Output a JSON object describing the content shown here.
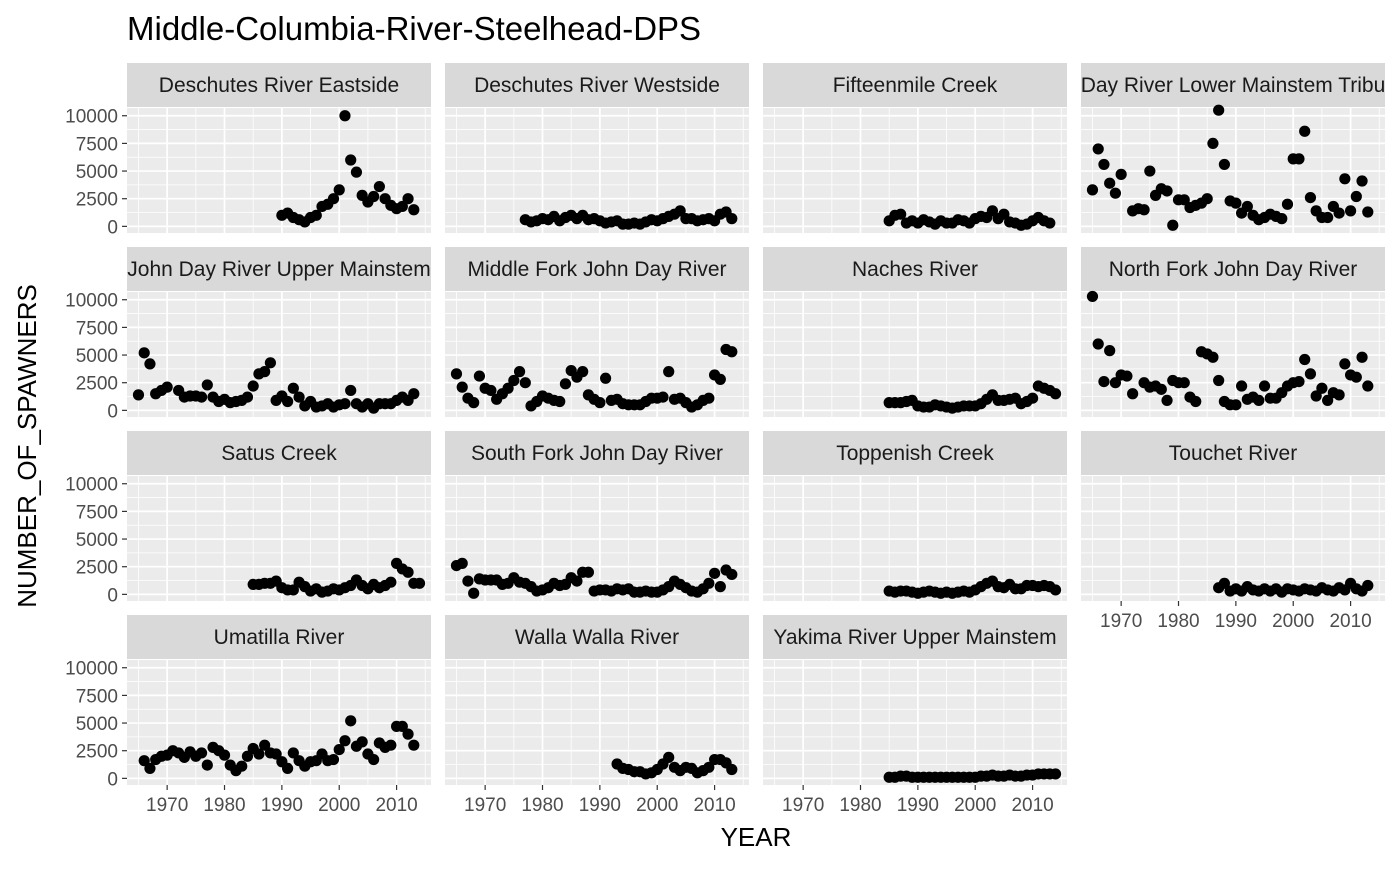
{
  "chart_data": {
    "type": "scatter",
    "title": "Middle-Columbia-River-Steelhead-DPS",
    "xlabel": "YEAR",
    "ylabel": "NUMBER_OF_SPAWNERS",
    "xlim": [
      1963,
      2016
    ],
    "ylim": [
      -600,
      10700
    ],
    "x_ticks": [
      1970,
      1980,
      1990,
      2000,
      2010
    ],
    "y_ticks": [
      0,
      2500,
      5000,
      7500,
      10000
    ],
    "y_tick_labels": [
      "0",
      "2500",
      "5000",
      "7500",
      "10000"
    ],
    "grid": true,
    "panel_background": "#ebebeb",
    "strip_background": "#d9d9d9",
    "point_color": "#000000",
    "facets": [
      {
        "name": "Deschutes River Eastside",
        "x": [
          1990,
          1991,
          1992,
          1993,
          1994,
          1995,
          1996,
          1997,
          1998,
          1999,
          2000,
          2001,
          2002,
          2003,
          2004,
          2005,
          2006,
          2007,
          2008,
          2009,
          2010,
          2011,
          2012,
          2013
        ],
        "y": [
          1000,
          1200,
          800,
          600,
          400,
          800,
          1000,
          1800,
          2000,
          2500,
          3300,
          10000,
          6000,
          4900,
          2800,
          2200,
          2700,
          3600,
          2500,
          1900,
          1600,
          1800,
          2500,
          1500
        ]
      },
      {
        "name": "Deschutes River Westside",
        "x": [
          1977,
          1978,
          1979,
          1980,
          1981,
          1982,
          1983,
          1984,
          1985,
          1986,
          1987,
          1988,
          1989,
          1990,
          1991,
          1992,
          1993,
          1994,
          1995,
          1996,
          1997,
          1998,
          1999,
          2000,
          2001,
          2002,
          2003,
          2004,
          2005,
          2006,
          2007,
          2008,
          2009,
          2010,
          2011,
          2012,
          2013
        ],
        "y": [
          600,
          400,
          500,
          700,
          600,
          900,
          500,
          800,
          1000,
          700,
          1000,
          600,
          700,
          500,
          300,
          400,
          500,
          200,
          200,
          300,
          200,
          400,
          600,
          500,
          700,
          900,
          1100,
          1400,
          700,
          700,
          500,
          600,
          700,
          500,
          1100,
          1300,
          700
        ]
      },
      {
        "name": "Fifteenmile Creek",
        "x": [
          1985,
          1986,
          1987,
          1988,
          1989,
          1990,
          1991,
          1992,
          1993,
          1994,
          1995,
          1996,
          1997,
          1998,
          1999,
          2000,
          2001,
          2002,
          2003,
          2004,
          2005,
          2006,
          2007,
          2008,
          2009,
          2010,
          2011,
          2012,
          2013
        ],
        "y": [
          500,
          1000,
          1100,
          300,
          500,
          300,
          600,
          400,
          200,
          500,
          300,
          300,
          600,
          500,
          300,
          700,
          900,
          800,
          1400,
          700,
          1100,
          400,
          300,
          100,
          200,
          500,
          800,
          500,
          300
        ]
      },
      {
        "name": "John Day River Lower Mainstem Tributaries",
        "x": [
          1965,
          1966,
          1967,
          1968,
          1969,
          1970,
          1972,
          1973,
          1974,
          1975,
          1976,
          1977,
          1978,
          1979,
          1980,
          1981,
          1982,
          1983,
          1984,
          1985,
          1986,
          1987,
          1988,
          1989,
          1990,
          1991,
          1992,
          1993,
          1994,
          1995,
          1996,
          1997,
          1998,
          1999,
          2000,
          2001,
          2002,
          2003,
          2004,
          2005,
          2006,
          2007,
          2008,
          2009,
          2010,
          2011,
          2012,
          2013
        ],
        "y": [
          3300,
          7000,
          5600,
          3900,
          3000,
          4700,
          1400,
          1600,
          1500,
          5000,
          2800,
          3400,
          3200,
          100,
          2400,
          2400,
          1700,
          1900,
          2100,
          2500,
          7500,
          10500,
          5600,
          2300,
          2100,
          1200,
          1800,
          1000,
          600,
          800,
          1100,
          900,
          700,
          2000,
          6100,
          6100,
          8600,
          2600,
          1400,
          800,
          800,
          1800,
          1200,
          4300,
          1400,
          2700,
          4100,
          1300
        ]
      },
      {
        "name": "John Day River Upper Mainstem",
        "x": [
          1965,
          1966,
          1967,
          1968,
          1969,
          1970,
          1972,
          1973,
          1974,
          1975,
          1976,
          1977,
          1978,
          1979,
          1980,
          1981,
          1982,
          1983,
          1984,
          1985,
          1986,
          1987,
          1988,
          1989,
          1990,
          1991,
          1992,
          1993,
          1994,
          1995,
          1996,
          1997,
          1998,
          1999,
          2000,
          2001,
          2002,
          2003,
          2004,
          2005,
          2006,
          2007,
          2008,
          2009,
          2010,
          2011,
          2012,
          2013
        ],
        "y": [
          1400,
          5200,
          4200,
          1500,
          1800,
          2100,
          1800,
          1200,
          1300,
          1300,
          1200,
          2300,
          1200,
          800,
          1000,
          700,
          800,
          900,
          1200,
          2200,
          3300,
          3500,
          4300,
          900,
          1300,
          800,
          2000,
          1200,
          400,
          800,
          300,
          400,
          600,
          300,
          500,
          600,
          1800,
          600,
          300,
          600,
          200,
          600,
          600,
          600,
          900,
          1200,
          900,
          1500
        ]
      },
      {
        "name": "Middle Fork John Day River",
        "x": [
          1965,
          1966,
          1967,
          1968,
          1969,
          1970,
          1971,
          1972,
          1973,
          1974,
          1975,
          1976,
          1977,
          1978,
          1979,
          1980,
          1981,
          1982,
          1983,
          1984,
          1985,
          1986,
          1987,
          1988,
          1989,
          1990,
          1991,
          1992,
          1993,
          1994,
          1995,
          1996,
          1997,
          1998,
          1999,
          2000,
          2001,
          2002,
          2003,
          2004,
          2005,
          2006,
          2007,
          2008,
          2009,
          2010,
          2011,
          2012,
          2013
        ],
        "y": [
          3300,
          2100,
          1100,
          700,
          3100,
          2000,
          1800,
          1000,
          1500,
          2000,
          2700,
          3500,
          2500,
          400,
          800,
          1300,
          1100,
          900,
          800,
          2400,
          3600,
          3000,
          3500,
          1400,
          1000,
          700,
          2900,
          900,
          1000,
          600,
          500,
          500,
          500,
          800,
          1100,
          1100,
          1200,
          3500,
          1000,
          1100,
          700,
          300,
          500,
          900,
          1100,
          3200,
          2800,
          5500,
          5300
        ]
      },
      {
        "name": "Naches River",
        "x": [
          1985,
          1986,
          1987,
          1988,
          1989,
          1990,
          1991,
          1992,
          1993,
          1994,
          1995,
          1996,
          1997,
          1998,
          1999,
          2000,
          2001,
          2002,
          2003,
          2004,
          2005,
          2006,
          2007,
          2008,
          2009,
          2010,
          2011,
          2012,
          2013,
          2014
        ],
        "y": [
          700,
          700,
          700,
          800,
          900,
          400,
          300,
          300,
          500,
          400,
          300,
          200,
          300,
          400,
          400,
          400,
          600,
          1000,
          1400,
          900,
          900,
          1000,
          1100,
          600,
          800,
          1100,
          2200,
          2000,
          1800,
          1500
        ]
      },
      {
        "name": "North Fork John Day River",
        "x": [
          1965,
          1966,
          1967,
          1968,
          1969,
          1970,
          1971,
          1972,
          1974,
          1975,
          1976,
          1977,
          1978,
          1979,
          1980,
          1981,
          1982,
          1983,
          1984,
          1985,
          1986,
          1987,
          1988,
          1989,
          1990,
          1991,
          1992,
          1993,
          1994,
          1995,
          1996,
          1997,
          1998,
          1999,
          2000,
          2001,
          2002,
          2003,
          2004,
          2005,
          2006,
          2007,
          2008,
          2009,
          2010,
          2011,
          2012,
          2013
        ],
        "y": [
          10300,
          6000,
          2600,
          5400,
          2500,
          3200,
          3100,
          1500,
          2500,
          2100,
          2200,
          1900,
          900,
          2700,
          2500,
          2500,
          1200,
          800,
          5300,
          5100,
          4800,
          2700,
          800,
          500,
          500,
          2200,
          1000,
          1200,
          900,
          2200,
          1100,
          1100,
          1600,
          2200,
          2500,
          2600,
          4600,
          3300,
          1300,
          2000,
          900,
          1600,
          1400,
          4200,
          3200,
          3000,
          4800,
          2200
        ]
      },
      {
        "name": "Satus Creek",
        "x": [
          1985,
          1986,
          1987,
          1988,
          1989,
          1990,
          1991,
          1992,
          1993,
          1994,
          1995,
          1996,
          1997,
          1998,
          1999,
          2000,
          2001,
          2002,
          2003,
          2004,
          2005,
          2006,
          2007,
          2008,
          2009,
          2010,
          2011,
          2012,
          2013,
          2014
        ],
        "y": [
          900,
          900,
          1000,
          1000,
          1200,
          600,
          400,
          400,
          1100,
          700,
          300,
          500,
          200,
          300,
          500,
          400,
          600,
          800,
          1300,
          800,
          500,
          900,
          600,
          800,
          1100,
          2800,
          2300,
          2000,
          1000,
          1000
        ]
      },
      {
        "name": "South Fork John Day River",
        "x": [
          1965,
          1966,
          1967,
          1968,
          1969,
          1970,
          1971,
          1972,
          1973,
          1974,
          1975,
          1976,
          1977,
          1978,
          1979,
          1980,
          1981,
          1982,
          1983,
          1984,
          1985,
          1986,
          1987,
          1988,
          1989,
          1990,
          1991,
          1992,
          1993,
          1994,
          1995,
          1996,
          1997,
          1998,
          1999,
          2000,
          2001,
          2002,
          2003,
          2004,
          2005,
          2006,
          2007,
          2008,
          2009,
          2010,
          2011,
          2012,
          2013
        ],
        "y": [
          2600,
          2800,
          1200,
          100,
          1400,
          1300,
          1300,
          1300,
          900,
          1000,
          1500,
          1100,
          1000,
          700,
          300,
          400,
          600,
          1000,
          800,
          900,
          1500,
          1200,
          2000,
          2000,
          300,
          400,
          400,
          300,
          500,
          400,
          500,
          200,
          200,
          300,
          200,
          200,
          400,
          700,
          1200,
          900,
          600,
          300,
          200,
          500,
          1000,
          1900,
          700,
          2200,
          1800
        ]
      },
      {
        "name": "Toppenish Creek",
        "x": [
          1985,
          1986,
          1987,
          1988,
          1989,
          1990,
          1991,
          1992,
          1993,
          1994,
          1995,
          1996,
          1997,
          1998,
          1999,
          2000,
          2001,
          2002,
          2003,
          2004,
          2005,
          2006,
          2007,
          2008,
          2009,
          2010,
          2011,
          2012,
          2013,
          2014
        ],
        "y": [
          300,
          200,
          300,
          300,
          200,
          100,
          200,
          300,
          200,
          100,
          200,
          100,
          200,
          300,
          200,
          400,
          700,
          1000,
          1200,
          700,
          600,
          900,
          500,
          500,
          800,
          800,
          700,
          800,
          700,
          400
        ]
      },
      {
        "name": "Touchet River",
        "x": [
          1987,
          1988,
          1989,
          1990,
          1991,
          1992,
          1993,
          1994,
          1995,
          1996,
          1997,
          1998,
          1999,
          2000,
          2001,
          2002,
          2003,
          2004,
          2005,
          2006,
          2007,
          2008,
          2009,
          2010,
          2011,
          2012,
          2013
        ],
        "y": [
          600,
          1000,
          300,
          500,
          300,
          700,
          400,
          300,
          500,
          300,
          500,
          200,
          500,
          400,
          300,
          500,
          400,
          300,
          600,
          400,
          300,
          600,
          400,
          1000,
          500,
          300,
          800
        ]
      },
      {
        "name": "Umatilla River",
        "x": [
          1966,
          1967,
          1968,
          1969,
          1970,
          1971,
          1972,
          1973,
          1974,
          1975,
          1976,
          1977,
          1978,
          1979,
          1980,
          1981,
          1982,
          1983,
          1984,
          1985,
          1986,
          1987,
          1988,
          1989,
          1990,
          1991,
          1992,
          1993,
          1994,
          1995,
          1996,
          1997,
          1998,
          1999,
          2000,
          2001,
          2002,
          2003,
          2004,
          2005,
          2006,
          2007,
          2008,
          2009,
          2010,
          2011,
          2012,
          2013
        ],
        "y": [
          1600,
          900,
          1700,
          2000,
          2100,
          2500,
          2300,
          1900,
          2400,
          2000,
          2300,
          1200,
          2800,
          2500,
          2100,
          1200,
          700,
          1100,
          2000,
          2700,
          2200,
          3000,
          2300,
          2200,
          1500,
          900,
          2300,
          1600,
          1100,
          1500,
          1600,
          2200,
          1600,
          1700,
          2600,
          3400,
          5200,
          2900,
          3300,
          2200,
          1700,
          3200,
          2800,
          3000,
          4700,
          4700,
          4000,
          3000
        ]
      },
      {
        "name": "Walla Walla River",
        "x": [
          1993,
          1994,
          1995,
          1996,
          1997,
          1998,
          1999,
          2000,
          2001,
          2002,
          2003,
          2004,
          2005,
          2006,
          2007,
          2008,
          2009,
          2010,
          2011,
          2012,
          2013
        ],
        "y": [
          1300,
          900,
          800,
          600,
          600,
          400,
          500,
          800,
          1300,
          1900,
          1000,
          700,
          1000,
          900,
          500,
          700,
          1000,
          1700,
          1700,
          1400,
          800
        ]
      },
      {
        "name": "Yakima River Upper Mainstem",
        "x": [
          1985,
          1986,
          1987,
          1988,
          1989,
          1990,
          1991,
          1992,
          1993,
          1994,
          1995,
          1996,
          1997,
          1998,
          1999,
          2000,
          2001,
          2002,
          2003,
          2004,
          2005,
          2006,
          2007,
          2008,
          2009,
          2010,
          2011,
          2012,
          2013,
          2014
        ],
        "y": [
          100,
          100,
          200,
          200,
          100,
          100,
          100,
          100,
          100,
          100,
          100,
          100,
          100,
          100,
          100,
          100,
          200,
          200,
          300,
          200,
          200,
          300,
          200,
          200,
          300,
          300,
          400,
          400,
          400,
          400
        ]
      }
    ]
  }
}
